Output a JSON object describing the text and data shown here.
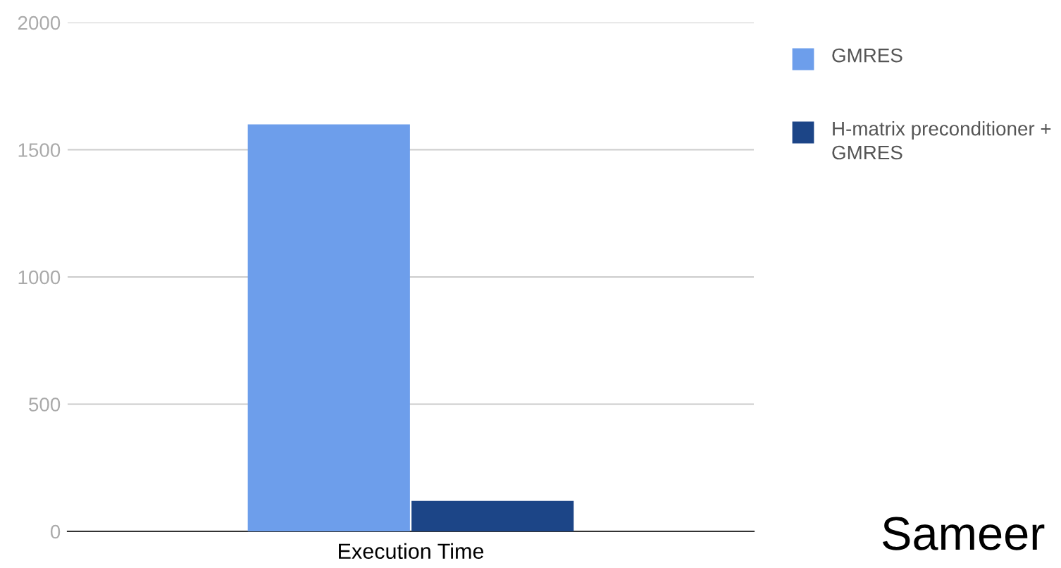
{
  "chart_data": {
    "type": "bar",
    "categories": [
      "Execution Time"
    ],
    "series": [
      {
        "name": "GMRES",
        "color": "#6d9eeb",
        "values": [
          1600
        ]
      },
      {
        "name": "H-matrix preconditioner + GMRES",
        "color": "#1c4587",
        "values": [
          120
        ]
      }
    ],
    "ylim": [
      0,
      2000
    ],
    "yticks": [
      0,
      500,
      1000,
      1500,
      2000
    ],
    "grid": "y",
    "legend": "top right",
    "annotations": [
      "Sameer"
    ]
  }
}
